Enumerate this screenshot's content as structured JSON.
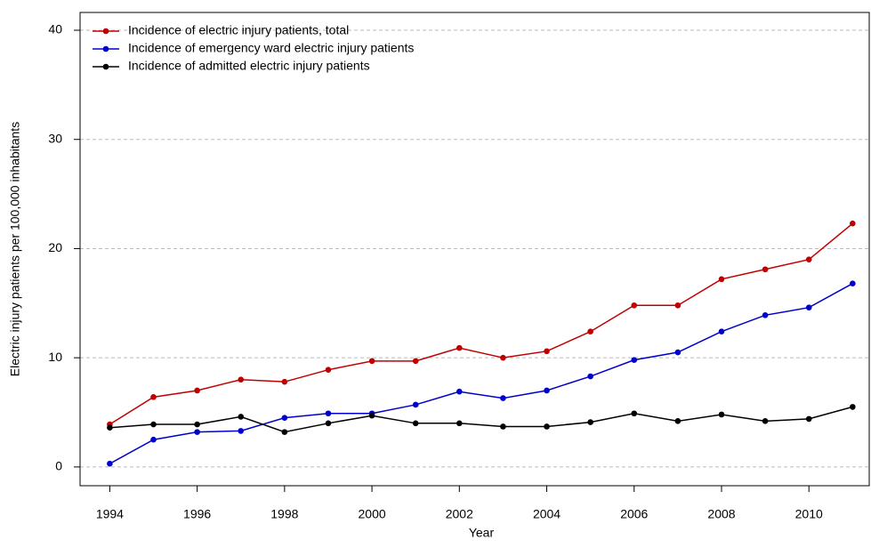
{
  "chart_data": {
    "type": "line",
    "xlabel": "Year",
    "ylabel": "Electric injury patients per 100,000 inhabitants",
    "x": [
      1994,
      1995,
      1996,
      1997,
      1998,
      1999,
      2000,
      2001,
      2002,
      2003,
      2004,
      2005,
      2006,
      2007,
      2008,
      2009,
      2010,
      2011
    ],
    "series": [
      {
        "name": "Incidence of electric injury patients, total",
        "color": "#c00000",
        "values": [
          3.9,
          6.4,
          7.0,
          8.0,
          7.8,
          8.9,
          9.7,
          9.7,
          10.9,
          10.0,
          10.6,
          12.4,
          14.8,
          14.8,
          17.2,
          18.1,
          19.0,
          22.3
        ]
      },
      {
        "name": "Incidence of emergency ward electric injury patients",
        "color": "#0000cc",
        "values": [
          0.3,
          2.5,
          3.2,
          3.3,
          4.5,
          4.9,
          4.9,
          5.7,
          6.9,
          6.3,
          7.0,
          8.3,
          9.8,
          10.5,
          12.4,
          13.9,
          14.6,
          16.8
        ]
      },
      {
        "name": "Incidence of admitted electric injury patients",
        "color": "#000000",
        "values": [
          3.6,
          3.9,
          3.9,
          4.6,
          3.2,
          4.0,
          4.7,
          4.0,
          4.0,
          3.7,
          3.7,
          4.1,
          4.9,
          4.2,
          4.8,
          4.2,
          4.4,
          5.5
        ]
      }
    ],
    "xlim": [
      1993.32,
      2011.38
    ],
    "xticks": [
      1994,
      1996,
      1998,
      2000,
      2002,
      2004,
      2006,
      2008,
      2010
    ],
    "ylim": [
      -1.72,
      41.63
    ],
    "yticks": [
      0,
      10,
      20,
      30,
      40
    ],
    "grid": true,
    "legend": "top-left"
  }
}
